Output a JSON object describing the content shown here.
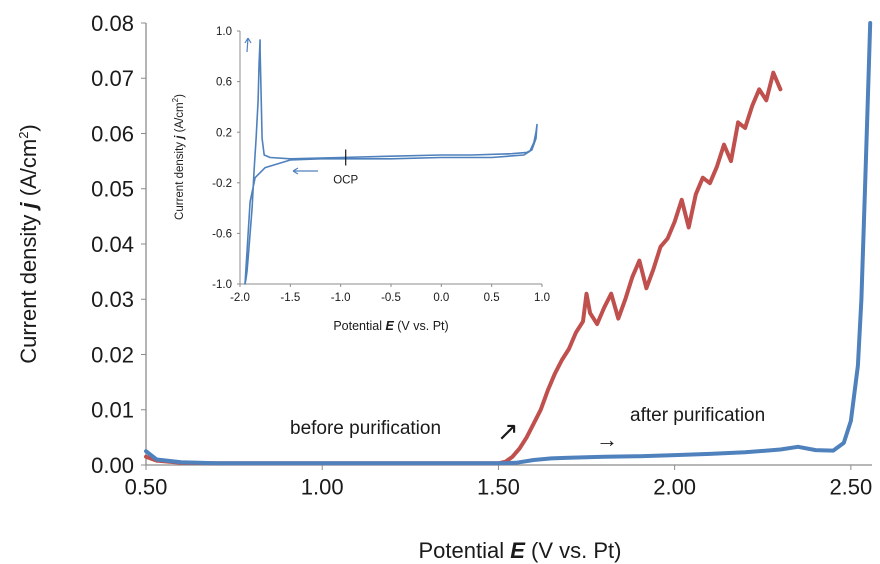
{
  "chart_data": [
    {
      "type": "line",
      "xlabel_prefix": "Potential ",
      "xlabel_var": "E",
      "xlabel_suffix": " (V vs. Pt)",
      "ylabel_prefix": "Current density ",
      "ylabel_var": "j",
      "ylabel_unit": " (A/cm",
      "ylabel_exp": "2",
      "ylabel_close": ")",
      "xlim": [
        0.5,
        2.56
      ],
      "ylim": [
        0,
        0.08
      ],
      "xticks": [
        0.5,
        1.0,
        1.5,
        2.0,
        2.5
      ],
      "xtick_labels": [
        "0.50",
        "1.00",
        "1.50",
        "2.00",
        "2.50"
      ],
      "yticks": [
        0,
        0.01,
        0.02,
        0.03,
        0.04,
        0.05,
        0.06,
        0.07,
        0.08
      ],
      "ytick_labels": [
        "0.00",
        "0.01",
        "0.02",
        "0.03",
        "0.04",
        "0.05",
        "0.06",
        "0.07",
        "0.08"
      ],
      "grid": false,
      "series": [
        {
          "name": "before purification",
          "color": "#c0504d",
          "x": [
            0.5,
            0.53,
            0.6,
            0.7,
            0.8,
            0.9,
            1.0,
            1.1,
            1.2,
            1.3,
            1.4,
            1.5,
            1.52,
            1.54,
            1.56,
            1.58,
            1.6,
            1.62,
            1.64,
            1.66,
            1.68,
            1.7,
            1.72,
            1.74,
            1.75,
            1.76,
            1.78,
            1.8,
            1.82,
            1.84,
            1.86,
            1.88,
            1.9,
            1.92,
            1.94,
            1.96,
            1.98,
            2.0,
            2.02,
            2.04,
            2.06,
            2.08,
            2.1,
            2.12,
            2.14,
            2.16,
            2.18,
            2.2,
            2.22,
            2.24,
            2.26,
            2.28,
            2.3
          ],
          "y": [
            0.0015,
            0.0008,
            0.0004,
            0.0003,
            0.0003,
            0.0003,
            0.0003,
            0.0003,
            0.0003,
            0.0003,
            0.0003,
            0.0003,
            0.0006,
            0.0015,
            0.003,
            0.005,
            0.0075,
            0.01,
            0.0135,
            0.0165,
            0.019,
            0.021,
            0.024,
            0.026,
            0.031,
            0.0275,
            0.0255,
            0.0285,
            0.031,
            0.0265,
            0.03,
            0.034,
            0.037,
            0.032,
            0.0355,
            0.0395,
            0.041,
            0.044,
            0.048,
            0.043,
            0.049,
            0.052,
            0.051,
            0.054,
            0.058,
            0.055,
            0.062,
            0.061,
            0.065,
            0.068,
            0.066,
            0.071,
            0.068
          ],
          "label": "before purification",
          "arrow": "↗"
        },
        {
          "name": "after purification",
          "color": "#4f81bd",
          "x": [
            0.5,
            0.53,
            0.6,
            0.7,
            0.8,
            0.9,
            1.0,
            1.1,
            1.2,
            1.3,
            1.4,
            1.5,
            1.55,
            1.6,
            1.65,
            1.7,
            1.8,
            1.9,
            2.0,
            2.1,
            2.2,
            2.3,
            2.35,
            2.4,
            2.45,
            2.48,
            2.5,
            2.52,
            2.53,
            2.54,
            2.55,
            2.555
          ],
          "y": [
            0.0025,
            0.001,
            0.0005,
            0.0003,
            0.0003,
            0.0003,
            0.0003,
            0.0003,
            0.0003,
            0.0003,
            0.0003,
            0.0003,
            0.0004,
            0.0009,
            0.0012,
            0.0013,
            0.0015,
            0.0016,
            0.0018,
            0.002,
            0.0023,
            0.0028,
            0.0033,
            0.0027,
            0.0026,
            0.004,
            0.008,
            0.018,
            0.03,
            0.05,
            0.07,
            0.08
          ],
          "label": "after purification",
          "arrow": "→"
        }
      ]
    },
    {
      "type": "line",
      "inset": true,
      "xlabel_prefix": "Potential ",
      "xlabel_var": "E",
      "xlabel_suffix": " (V vs. Pt)",
      "ylabel_prefix": "Current density ",
      "ylabel_var": "j",
      "ylabel_unit": " (A/cm",
      "ylabel_exp": "2",
      "ylabel_close": ")",
      "xlim": [
        -2.0,
        1.0
      ],
      "ylim": [
        -1.0,
        1.0
      ],
      "xticks": [
        -2.0,
        -1.5,
        -1.0,
        -0.5,
        0.0,
        0.5,
        1.0
      ],
      "xtick_labels": [
        "-2.0",
        "-1.5",
        "-1.0",
        "-0.5",
        "0.0",
        "0.5",
        "1.0"
      ],
      "yticks": [
        1.0,
        0.6,
        0.2,
        -0.2,
        -0.6,
        -1.0
      ],
      "ytick_labels": [
        "1.0",
        "0.6",
        "0.2",
        "-0.2",
        "-0.6",
        "-1.0"
      ],
      "grid": false,
      "annotation": "OCP",
      "ocp_x": -0.95,
      "series": [
        {
          "color": "#4f81bd",
          "x": [
            -0.95,
            -0.5,
            0.0,
            0.5,
            0.82,
            0.88,
            0.92,
            0.94,
            0.95,
            0.94,
            0.9,
            0.85,
            0.7,
            0.3,
            0.0,
            -0.5,
            -1.0,
            -1.5,
            -1.7,
            -1.76,
            -1.78,
            -1.79,
            -1.8,
            -1.8,
            -1.81,
            -1.82,
            -1.84,
            -1.86,
            -1.88,
            -1.9,
            -1.92,
            -1.93,
            -1.94,
            -1.95,
            -1.9,
            -1.85,
            -1.75,
            -1.5,
            -1.2,
            -0.95
          ],
          "y": [
            -0.01,
            -0.01,
            0.0,
            0.0,
            0.02,
            0.05,
            0.12,
            0.2,
            0.26,
            0.15,
            0.06,
            0.04,
            0.03,
            0.02,
            0.02,
            0.01,
            0.0,
            -0.01,
            0.0,
            0.02,
            0.15,
            0.5,
            0.85,
            0.93,
            0.75,
            0.45,
            0.15,
            -0.1,
            -0.4,
            -0.6,
            -0.8,
            -0.9,
            -0.96,
            -1.0,
            -0.35,
            -0.16,
            -0.08,
            -0.02,
            -0.01,
            -0.01
          ]
        }
      ]
    }
  ]
}
